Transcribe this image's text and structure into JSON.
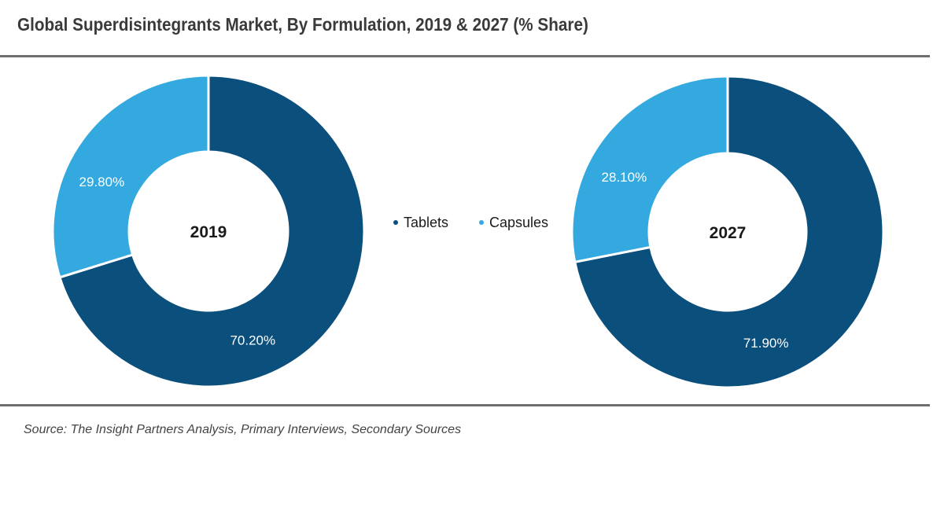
{
  "title": "Global Superdisintegrants Market, By Formulation, 2019 & 2027 (% Share)",
  "source": "Source: The Insight Partners Analysis, Primary Interviews, Secondary Sources",
  "colors": {
    "tablets": "#0b4f7d",
    "capsules": "#33a9df"
  },
  "chart_data": [
    {
      "type": "pie",
      "variant": "donut",
      "center_label": "2019",
      "categories": [
        "Tablets",
        "Capsules"
      ],
      "values": [
        70.2,
        29.8
      ],
      "value_labels": [
        "70.20%",
        "29.80%"
      ]
    },
    {
      "type": "pie",
      "variant": "donut",
      "center_label": "2027",
      "categories": [
        "Tablets",
        "Capsules"
      ],
      "values": [
        71.9,
        28.1
      ],
      "value_labels": [
        "71.90%",
        "28.10%"
      ]
    }
  ],
  "legend": {
    "placement": "center",
    "items": [
      {
        "label": "Tablets",
        "color": "#0b4f7d"
      },
      {
        "label": "Capsules",
        "color": "#33a9df"
      }
    ]
  }
}
